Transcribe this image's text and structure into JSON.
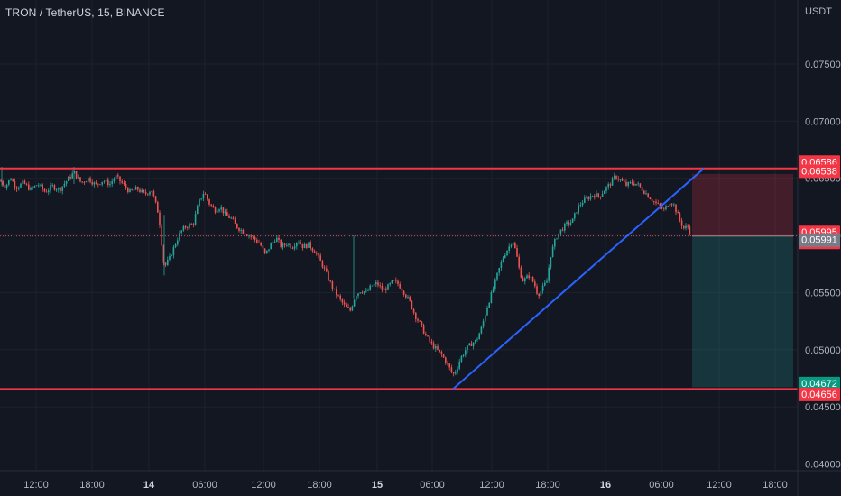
{
  "header": {
    "title": "TRON / TetherUS, 15, BINANCE",
    "currency": "USDT"
  },
  "chart_data": {
    "type": "candlestick",
    "symbol": "TRON / TetherUS",
    "interval": "15",
    "exchange": "BINANCE",
    "ylabel": "USDT",
    "ylim": [
      0.0372,
      0.0806
    ],
    "y_ticks": [
      "0.07500",
      "0.07000",
      "0.06500",
      "0.06000",
      "0.05500",
      "0.05000",
      "0.04500",
      "0.04000"
    ],
    "x_ticks": [
      {
        "label": "12:00",
        "bold": false
      },
      {
        "label": "18:00",
        "bold": false
      },
      {
        "label": "14",
        "bold": true
      },
      {
        "label": "06:00",
        "bold": false
      },
      {
        "label": "12:00",
        "bold": false
      },
      {
        "label": "18:00",
        "bold": false
      },
      {
        "label": "15",
        "bold": true
      },
      {
        "label": "06:00",
        "bold": false
      },
      {
        "label": "12:00",
        "bold": false
      },
      {
        "label": "18:00",
        "bold": false
      },
      {
        "label": "16",
        "bold": true
      },
      {
        "label": "06:00",
        "bold": false
      },
      {
        "label": "12:00",
        "bold": false
      },
      {
        "label": "18:00",
        "bold": false
      }
    ],
    "price_path": [
      [
        0,
        0.0648
      ],
      [
        6,
        0.0643
      ],
      [
        12,
        0.065
      ],
      [
        18,
        0.0642
      ],
      [
        26,
        0.0646
      ],
      [
        34,
        0.064
      ],
      [
        42,
        0.0645
      ],
      [
        50,
        0.0638
      ],
      [
        58,
        0.0643
      ],
      [
        66,
        0.064
      ],
      [
        74,
        0.0648
      ],
      [
        82,
        0.0655
      ],
      [
        90,
        0.0646
      ],
      [
        98,
        0.065
      ],
      [
        106,
        0.0644
      ],
      [
        114,
        0.0648
      ],
      [
        122,
        0.0645
      ],
      [
        128,
        0.0652
      ],
      [
        136,
        0.0645
      ],
      [
        144,
        0.0638
      ],
      [
        152,
        0.0641
      ],
      [
        160,
        0.0636
      ],
      [
        168,
        0.064
      ],
      [
        176,
        0.0618
      ],
      [
        182,
        0.0572
      ],
      [
        188,
        0.058
      ],
      [
        194,
        0.0592
      ],
      [
        200,
        0.0603
      ],
      [
        206,
        0.0608
      ],
      [
        214,
        0.061
      ],
      [
        220,
        0.0628
      ],
      [
        226,
        0.0638
      ],
      [
        232,
        0.0628
      ],
      [
        238,
        0.0622
      ],
      [
        244,
        0.0625
      ],
      [
        250,
        0.0618
      ],
      [
        256,
        0.0615
      ],
      [
        262,
        0.0608
      ],
      [
        270,
        0.0603
      ],
      [
        280,
        0.0598
      ],
      [
        288,
        0.0593
      ],
      [
        294,
        0.0583
      ],
      [
        300,
        0.0592
      ],
      [
        306,
        0.0598
      ],
      [
        312,
        0.059
      ],
      [
        318,
        0.0593
      ],
      [
        324,
        0.059
      ],
      [
        330,
        0.0596
      ],
      [
        336,
        0.059
      ],
      [
        342,
        0.0592
      ],
      [
        350,
        0.0585
      ],
      [
        358,
        0.0573
      ],
      [
        364,
        0.0562
      ],
      [
        370,
        0.0552
      ],
      [
        376,
        0.0545
      ],
      [
        382,
        0.0538
      ],
      [
        388,
        0.0534
      ],
      [
        394,
        0.0548
      ],
      [
        400,
        0.0552
      ],
      [
        406,
        0.055
      ],
      [
        412,
        0.0556
      ],
      [
        418,
        0.0558
      ],
      [
        424,
        0.0552
      ],
      [
        430,
        0.0555
      ],
      [
        436,
        0.056
      ],
      [
        442,
        0.0557
      ],
      [
        448,
        0.055
      ],
      [
        454,
        0.0542
      ],
      [
        460,
        0.053
      ],
      [
        466,
        0.0522
      ],
      [
        472,
        0.0512
      ],
      [
        478,
        0.0505
      ],
      [
        484,
        0.05
      ],
      [
        490,
        0.0495
      ],
      [
        496,
        0.0487
      ],
      [
        502,
        0.0478
      ],
      [
        506,
        0.0483
      ],
      [
        510,
        0.0492
      ],
      [
        516,
        0.05
      ],
      [
        522,
        0.0505
      ],
      [
        528,
        0.0508
      ],
      [
        534,
        0.052
      ],
      [
        540,
        0.0538
      ],
      [
        546,
        0.0552
      ],
      [
        552,
        0.0568
      ],
      [
        558,
        0.0582
      ],
      [
        564,
        0.059
      ],
      [
        568,
        0.0596
      ],
      [
        572,
        0.0585
      ],
      [
        576,
        0.0568
      ],
      [
        580,
        0.056
      ],
      [
        586,
        0.0565
      ],
      [
        592,
        0.0558
      ],
      [
        596,
        0.0548
      ],
      [
        600,
        0.0552
      ],
      [
        606,
        0.056
      ],
      [
        610,
        0.0582
      ],
      [
        616,
        0.0598
      ],
      [
        622,
        0.0605
      ],
      [
        628,
        0.061
      ],
      [
        634,
        0.0612
      ],
      [
        640,
        0.0624
      ],
      [
        646,
        0.063
      ],
      [
        652,
        0.0633
      ],
      [
        658,
        0.0636
      ],
      [
        664,
        0.0634
      ],
      [
        670,
        0.064
      ],
      [
        676,
        0.0645
      ],
      [
        682,
        0.0652
      ],
      [
        688,
        0.0648
      ],
      [
        694,
        0.0644
      ],
      [
        700,
        0.0646
      ],
      [
        706,
        0.0645
      ],
      [
        712,
        0.064
      ],
      [
        718,
        0.0635
      ],
      [
        724,
        0.063
      ],
      [
        730,
        0.0626
      ],
      [
        736,
        0.0622
      ],
      [
        742,
        0.063
      ],
      [
        746,
        0.0628
      ],
      [
        750,
        0.062
      ],
      [
        754,
        0.0612
      ],
      [
        758,
        0.0606
      ],
      [
        762,
        0.0608
      ],
      [
        766,
        0.06
      ]
    ],
    "lines": {
      "resistance": 0.06586,
      "support": 0.04656,
      "current_price": 0.05995
    },
    "trendline": {
      "start_price": 0.04656,
      "end_price": 0.06586
    },
    "position": {
      "stop_price": 0.06538,
      "entry_price": 0.05995,
      "target_price": 0.04672
    },
    "price_tags": [
      {
        "label": "0.06586",
        "price": 0.06586,
        "style": "red"
      },
      {
        "label": "0.06538",
        "price": 0.06538,
        "style": "red"
      },
      {
        "label": "0.05995",
        "price": 0.05995,
        "style": "red",
        "sub": "01:22"
      },
      {
        "label": "0.05991",
        "price": 0.05991,
        "style": "gray"
      },
      {
        "label": "0.04672",
        "price": 0.04672,
        "style": "green"
      },
      {
        "label": "0.04656",
        "price": 0.04656,
        "style": "red"
      }
    ],
    "colors": {
      "up": "#26a69a",
      "down": "#ef5350",
      "line_red": "#f23645",
      "trendline": "#2962ff",
      "stop_zone": "rgba(242,54,69,0.22)",
      "target_zone": "rgba(38,166,154,0.22)",
      "tag_gray": "#787b86",
      "tag_green": "#089981"
    }
  }
}
